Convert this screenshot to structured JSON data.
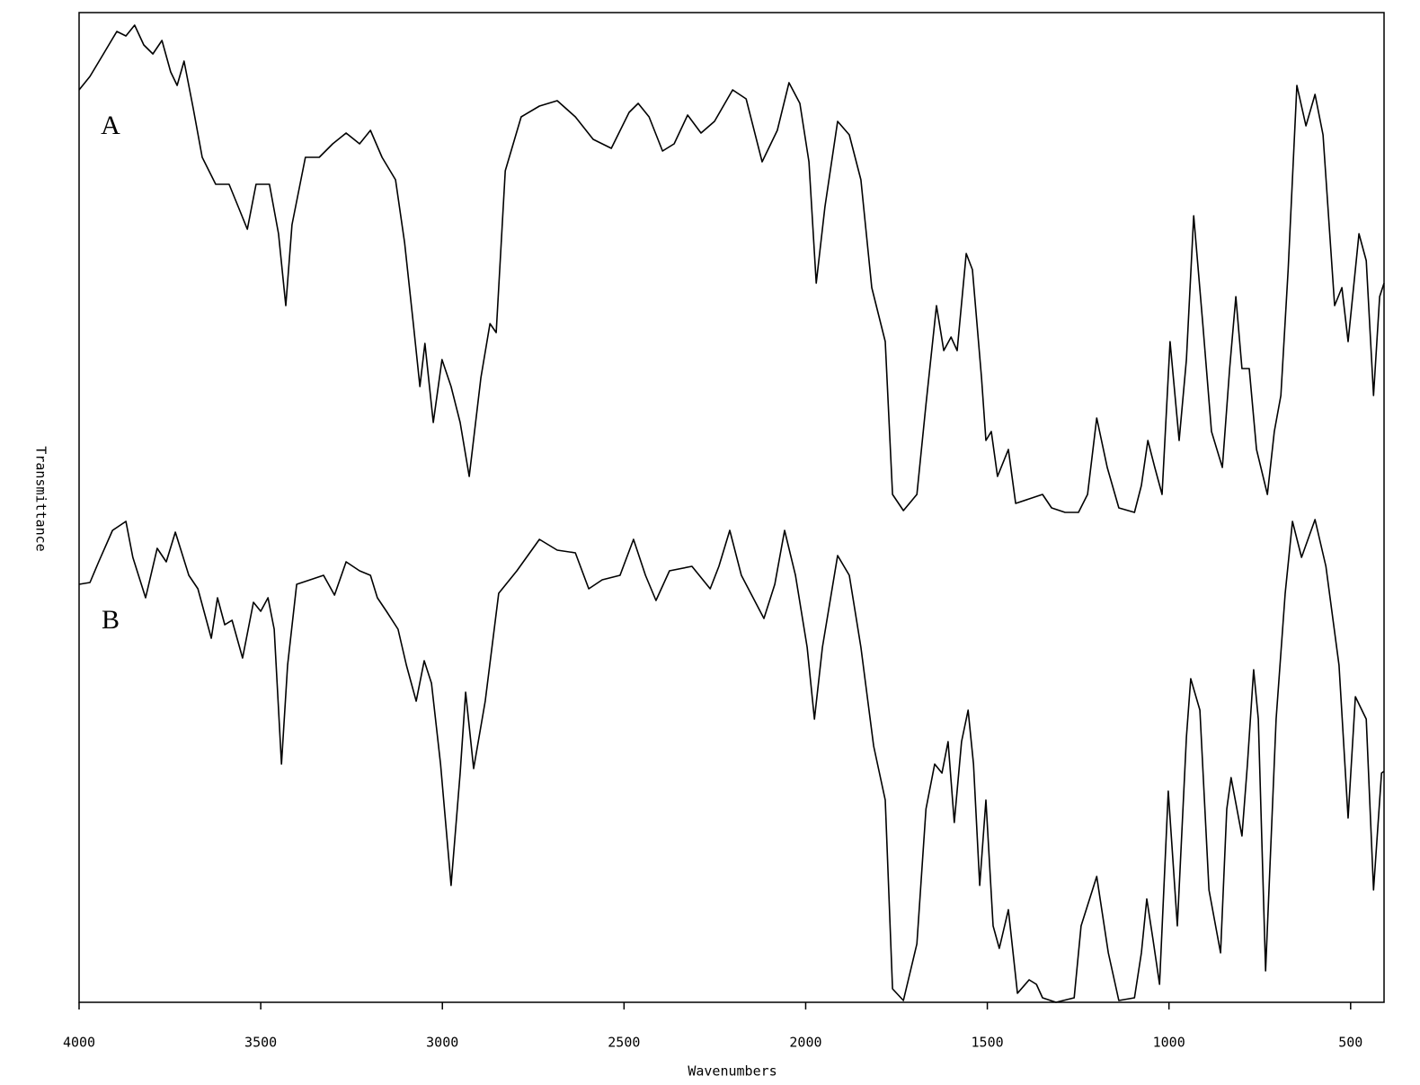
{
  "chart_data": {
    "type": "line",
    "x_label": "Wavenumbers",
    "y_label": "Transmittance",
    "xlim": [
      4000,
      408
    ],
    "xticks": [
      4000,
      3500,
      3000,
      2500,
      2000,
      1500,
      1000,
      500
    ],
    "ylim": [
      0,
      110.1
    ],
    "grid": false,
    "series": [
      {
        "name": "A",
        "color": "#000000",
        "x": [
          4000,
          3970,
          3933,
          3896,
          3871,
          3847,
          3822,
          3797,
          3772,
          3748,
          3730,
          3711,
          3686,
          3661,
          3624,
          3587,
          3562,
          3537,
          3513,
          3476,
          3451,
          3431,
          3414,
          3377,
          3339,
          3302,
          3265,
          3228,
          3198,
          3166,
          3129,
          3104,
          3080,
          3062,
          3048,
          3025,
          3001,
          2976,
          2951,
          2926,
          2894,
          2869,
          2852,
          2827,
          2783,
          2733,
          2684,
          2634,
          2585,
          2535,
          2486,
          2461,
          2431,
          2394,
          2362,
          2325,
          2288,
          2251,
          2201,
          2164,
          2120,
          2078,
          2046,
          2016,
          1991,
          1971,
          1947,
          1912,
          1880,
          1848,
          1818,
          1781,
          1761,
          1731,
          1694,
          1669,
          1640,
          1620,
          1600,
          1583,
          1558,
          1541,
          1516,
          1504,
          1489,
          1472,
          1442,
          1422,
          1385,
          1348,
          1323,
          1286,
          1249,
          1224,
          1199,
          1170,
          1138,
          1095,
          1076,
          1058,
          1039,
          1019,
          997,
          972,
          952,
          932,
          907,
          883,
          853,
          833,
          816,
          799,
          779,
          759,
          729,
          710,
          692,
          672,
          648,
          623,
          598,
          576,
          544,
          524,
          507,
          477,
          457,
          437,
          420,
          408
        ],
        "values": [
          101.5,
          103,
          105.5,
          108,
          107.5,
          108.7,
          106.5,
          105.5,
          107,
          103.5,
          102,
          104.7,
          99.5,
          94,
          91,
          91,
          88.5,
          86,
          91,
          91,
          85.5,
          77.5,
          86.5,
          94,
          94,
          95.5,
          96.7,
          95.5,
          97,
          94,
          91.5,
          84.5,
          75.5,
          68.5,
          73.3,
          64.5,
          71.5,
          68.5,
          64.5,
          58.5,
          69.5,
          75.5,
          74.5,
          92.5,
          98.5,
          99.7,
          100.3,
          98.5,
          96,
          95,
          99,
          100,
          98.5,
          94.7,
          95.5,
          98.7,
          96.7,
          98,
          101.5,
          100.5,
          93.5,
          97,
          102.3,
          100,
          93.5,
          80,
          88.5,
          98,
          96.5,
          91.5,
          79.5,
          73.5,
          56.5,
          54.7,
          56.5,
          66.5,
          77.5,
          72.5,
          74,
          72.5,
          83.3,
          81.5,
          69.5,
          62.5,
          63.5,
          58.5,
          61.5,
          55.5,
          56,
          56.5,
          55,
          54.5,
          54.5,
          56.5,
          65,
          59.5,
          55,
          54.5,
          57.5,
          62.5,
          59.5,
          56.5,
          73.5,
          62.5,
          71.5,
          87.5,
          75.5,
          63.5,
          59.5,
          70.5,
          78.5,
          70.5,
          70.5,
          61.5,
          56.5,
          63.5,
          67.5,
          81.5,
          102,
          97.5,
          101,
          96.5,
          77.5,
          79.5,
          73.5,
          85.5,
          82.5,
          67.5,
          78.5,
          80
        ]
      },
      {
        "name": "B",
        "color": "#000000",
        "x": [
          4000,
          3970,
          3946,
          3908,
          3871,
          3852,
          3817,
          3785,
          3760,
          3735,
          3698,
          3673,
          3636,
          3619,
          3599,
          3579,
          3550,
          3520,
          3500,
          3480,
          3463,
          3443,
          3426,
          3401,
          3364,
          3327,
          3297,
          3265,
          3228,
          3198,
          3179,
          3154,
          3122,
          3099,
          3072,
          3050,
          3030,
          3005,
          2976,
          2951,
          2936,
          2914,
          2882,
          2845,
          2795,
          2733,
          2684,
          2634,
          2597,
          2560,
          2511,
          2474,
          2441,
          2412,
          2375,
          2313,
          2263,
          2239,
          2209,
          2177,
          2115,
          2085,
          2058,
          2028,
          1996,
          1976,
          1954,
          1912,
          1880,
          1848,
          1813,
          1781,
          1761,
          1731,
          1694,
          1669,
          1645,
          1625,
          1608,
          1591,
          1571,
          1553,
          1538,
          1521,
          1504,
          1484,
          1467,
          1442,
          1417,
          1385,
          1365,
          1348,
          1311,
          1261,
          1242,
          1199,
          1167,
          1138,
          1095,
          1076,
          1061,
          1044,
          1026,
          1002,
          977,
          952,
          940,
          915,
          890,
          858,
          841,
          829,
          799,
          784,
          767,
          754,
          734,
          705,
          680,
          660,
          635,
          598,
          568,
          532,
          507,
          487,
          457,
          437,
          415,
          408
        ],
        "values": [
          46.5,
          46.7,
          49,
          52.5,
          53.5,
          49.5,
          45,
          50.5,
          49,
          52.3,
          47.5,
          46,
          40.5,
          45,
          42,
          42.5,
          38.3,
          44.5,
          43.5,
          45,
          41.5,
          26.5,
          37.5,
          46.5,
          47,
          47.5,
          45.3,
          49,
          48,
          47.5,
          45,
          43.5,
          41.5,
          37.5,
          33.5,
          38,
          35.5,
          26.5,
          13,
          25.5,
          34.5,
          26,
          33.5,
          45.5,
          48,
          51.5,
          50.3,
          50,
          46,
          47,
          47.5,
          51.5,
          47.5,
          44.7,
          48,
          48.5,
          46,
          48.5,
          52.5,
          47.5,
          42.7,
          46.5,
          52.5,
          47.5,
          39.5,
          31.5,
          39.5,
          49.7,
          47.5,
          39.5,
          28.5,
          22.5,
          1.5,
          0.2,
          6.5,
          21.5,
          26.5,
          25.5,
          29,
          20,
          29,
          32.5,
          26.5,
          13,
          22.5,
          8.5,
          6,
          10.3,
          1,
          2.5,
          2,
          0.5,
          0,
          0.5,
          8.5,
          14,
          5.5,
          0.2,
          0.5,
          5.5,
          11.5,
          7,
          2,
          23.5,
          8.5,
          29.5,
          36,
          32.5,
          12.5,
          5.5,
          21.5,
          25,
          18.5,
          26.5,
          37,
          31.5,
          3.5,
          31.5,
          45.5,
          53.5,
          49.5,
          53.7,
          48.5,
          37.5,
          20.5,
          34,
          31.5,
          12.5,
          25.5,
          25.7
        ]
      }
    ]
  }
}
